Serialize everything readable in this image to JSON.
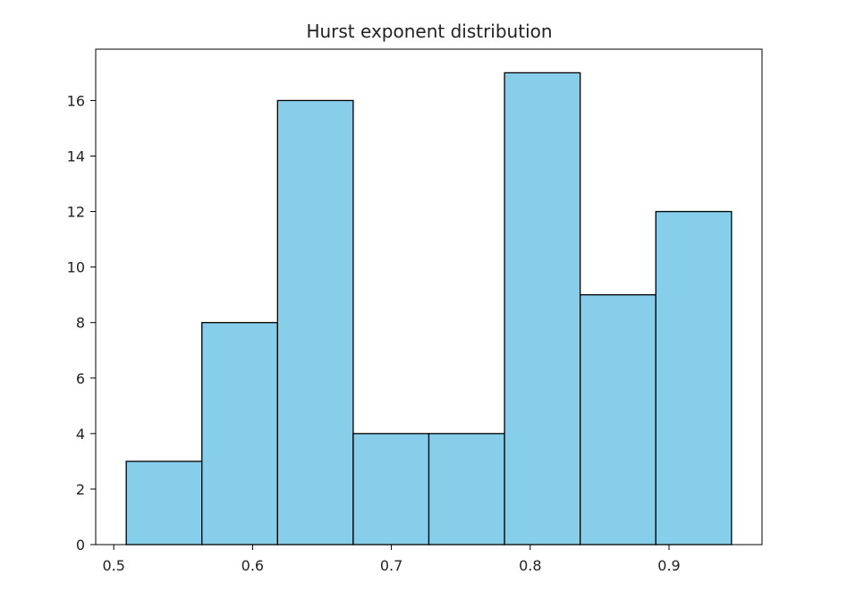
{
  "chart_data": {
    "type": "bar",
    "title": "Hurst exponent distribution",
    "xlabel": "",
    "ylabel": "",
    "bins": [
      {
        "start": 0.509,
        "end": 0.5635,
        "count": 3
      },
      {
        "start": 0.5635,
        "end": 0.618,
        "count": 8
      },
      {
        "start": 0.618,
        "end": 0.6725,
        "count": 16
      },
      {
        "start": 0.6725,
        "end": 0.727,
        "count": 4
      },
      {
        "start": 0.727,
        "end": 0.7815,
        "count": 4
      },
      {
        "start": 0.7815,
        "end": 0.836,
        "count": 17
      },
      {
        "start": 0.836,
        "end": 0.8905,
        "count": 9
      },
      {
        "start": 0.8905,
        "end": 0.945,
        "count": 12
      }
    ],
    "xlim": [
      0.487,
      0.967
    ],
    "ylim": [
      0,
      17.85
    ],
    "xticks": [
      0.5,
      0.6,
      0.7,
      0.8,
      0.9
    ],
    "xtick_labels": [
      "0.5",
      "0.6",
      "0.7",
      "0.8",
      "0.9"
    ],
    "yticks": [
      0,
      2,
      4,
      6,
      8,
      10,
      12,
      14,
      16
    ],
    "ytick_labels": [
      "0",
      "2",
      "4",
      "6",
      "8",
      "10",
      "12",
      "14",
      "16"
    ],
    "grid": false,
    "legend": "none",
    "bar_color": "#87ceeb",
    "edge_color": "#000000"
  }
}
